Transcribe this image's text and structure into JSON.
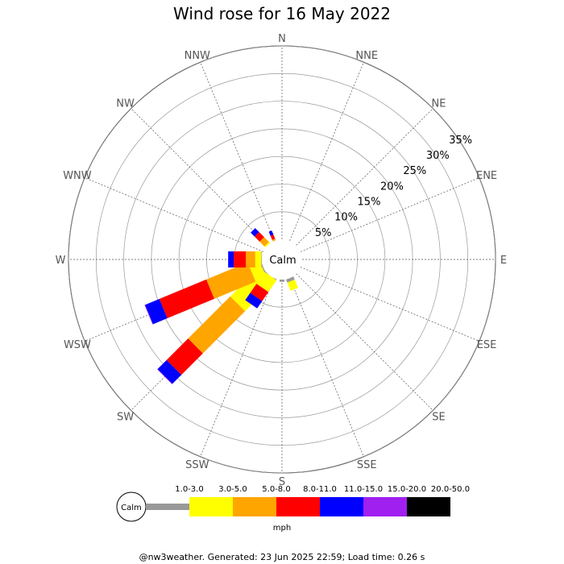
{
  "chart_data": {
    "type": "wind-rose",
    "title": "Wind rose for 16 May 2022",
    "calm_label": "Calm",
    "directions": [
      "N",
      "NNE",
      "NE",
      "ENE",
      "E",
      "ESE",
      "SE",
      "SSE",
      "S",
      "SSW",
      "SW",
      "WSW",
      "W",
      "WNW",
      "NW",
      "NNW"
    ],
    "rings": [
      5,
      10,
      15,
      20,
      25,
      30,
      35
    ],
    "ring_labels": [
      "5%",
      "10%",
      "15%",
      "20%",
      "25%",
      "30%",
      "35%"
    ],
    "rmax_percent": 35,
    "speed_bins": [
      {
        "label": "1.0-3.0",
        "color": "#999999"
      },
      {
        "label": "3.0-5.0",
        "color": "#ffff00"
      },
      {
        "label": "5.0-8.0",
        "color": "#ffa500"
      },
      {
        "label": "8.0-11.0",
        "color": "#ff0000"
      },
      {
        "label": "11.0-15.0",
        "color": "#0000ff"
      },
      {
        "label": "15.0-20.0",
        "color": "#a020f0"
      },
      {
        "label": "20.0-50.0",
        "color": "#000000"
      }
    ],
    "units": "mph",
    "cumulative_percent": {
      "N": [
        0,
        0,
        0,
        0,
        0,
        0,
        0
      ],
      "NNE": [
        0,
        0,
        0,
        0,
        0,
        0,
        0
      ],
      "NE": [
        0,
        0,
        0,
        0,
        0,
        0,
        0
      ],
      "ENE": [
        0,
        0,
        0,
        0,
        0,
        0,
        0
      ],
      "E": [
        0,
        0,
        0,
        0,
        0,
        0,
        0
      ],
      "ESE": [
        0,
        0,
        0,
        0,
        0,
        0,
        0
      ],
      "SE": [
        0,
        0,
        0,
        0,
        0,
        0,
        0
      ],
      "SSE": [
        0.6,
        2.2,
        2.2,
        2.2,
        2.2,
        2.2,
        2.2
      ],
      "S": [
        0.4,
        0.4,
        0.4,
        0.4,
        0.4,
        0.4,
        0.4
      ],
      "SSW": [
        0.3,
        0.3,
        0.3,
        0.3,
        0.3,
        0.3,
        0.3
      ],
      "SW": [
        0.2,
        7.7,
        18.5,
        24.0,
        26.3,
        26.4,
        26.4
      ],
      "WSW": [
        0.2,
        2.3,
        10.4,
        19.6,
        22.4,
        22.5,
        22.5
      ],
      "W": [
        0.1,
        1.2,
        2.9,
        5.1,
        6.1,
        6.1,
        6.1
      ],
      "WNW": [
        0,
        0,
        0,
        0,
        0,
        0,
        0
      ],
      "NW": [
        0,
        0.3,
        1.5,
        2.8,
        3.8,
        3.8,
        3.8
      ],
      "NNW": [
        0,
        0,
        0.3,
        1.1,
        1.9,
        1.9,
        1.9
      ],
      "SSW_offset_bar": [
        0,
        2.6,
        2.6,
        4.6,
        6.2,
        6.2,
        6.2
      ]
    }
  },
  "footer": "@nw3weather. Generated: 23 Jun 2025 22:59; Load time: 0.26 s"
}
